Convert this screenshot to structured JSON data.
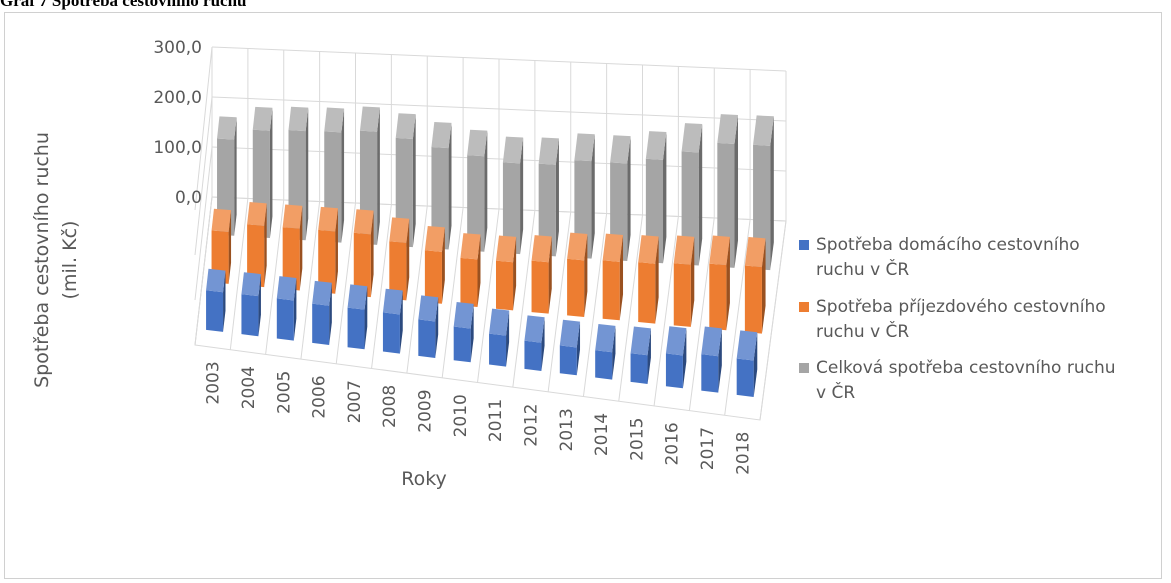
{
  "caption": "Graf 7 Spotřeba cestovního ruchu",
  "chart_data": {
    "type": "bar",
    "categories": [
      "2003",
      "2004",
      "2005",
      "2006",
      "2007",
      "2008",
      "2009",
      "2010",
      "2011",
      "2012",
      "2013",
      "2014",
      "2015",
      "2016",
      "2017",
      "2018"
    ],
    "series": [
      {
        "name": "Spotřeba domácího cestovního ruchu v ČR",
        "color": "#4472c4",
        "values": [
          87,
          88,
          88,
          86,
          87,
          86,
          80,
          74,
          68,
          62,
          61,
          60,
          63,
          72,
          80,
          80
        ]
      },
      {
        "name": "Spotřeba příjezdového cestovního ruchu v ČR",
        "color": "#ed7d31",
        "values": [
          110,
          130,
          131,
          132,
          133,
          122,
          110,
          101,
          102,
          109,
          120,
          124,
          127,
          132,
          138,
          141
        ]
      },
      {
        "name": "Celková spotřeba cestovního ruchu v ČR",
        "color": "#a5a5a5",
        "values": [
          197,
          220,
          224,
          226,
          232,
          222,
          208,
          196,
          186,
          188,
          200,
          200,
          212,
          232,
          254,
          255
        ]
      }
    ],
    "xlabel": "Roky",
    "ylabel": "Spotřeba cestovního ruchu (mil. Kč)",
    "ylabel_lines": [
      "Spotřeba cestovního ruchu",
      "(mil. Kč)"
    ],
    "ylim": [
      0,
      300
    ],
    "yticks": [
      "0,0",
      "100,0",
      "200,0",
      "300,0"
    ],
    "legend_lines": [
      [
        "Spotřeba domácího cestovního",
        "ruchu v ČR"
      ],
      [
        "Spotřeba příjezdového cestovního",
        "ruchu v ČR"
      ],
      [
        "Celková spotřeba cestovního ruchu",
        "v ČR"
      ]
    ],
    "legend_position": "right",
    "grid": true
  }
}
